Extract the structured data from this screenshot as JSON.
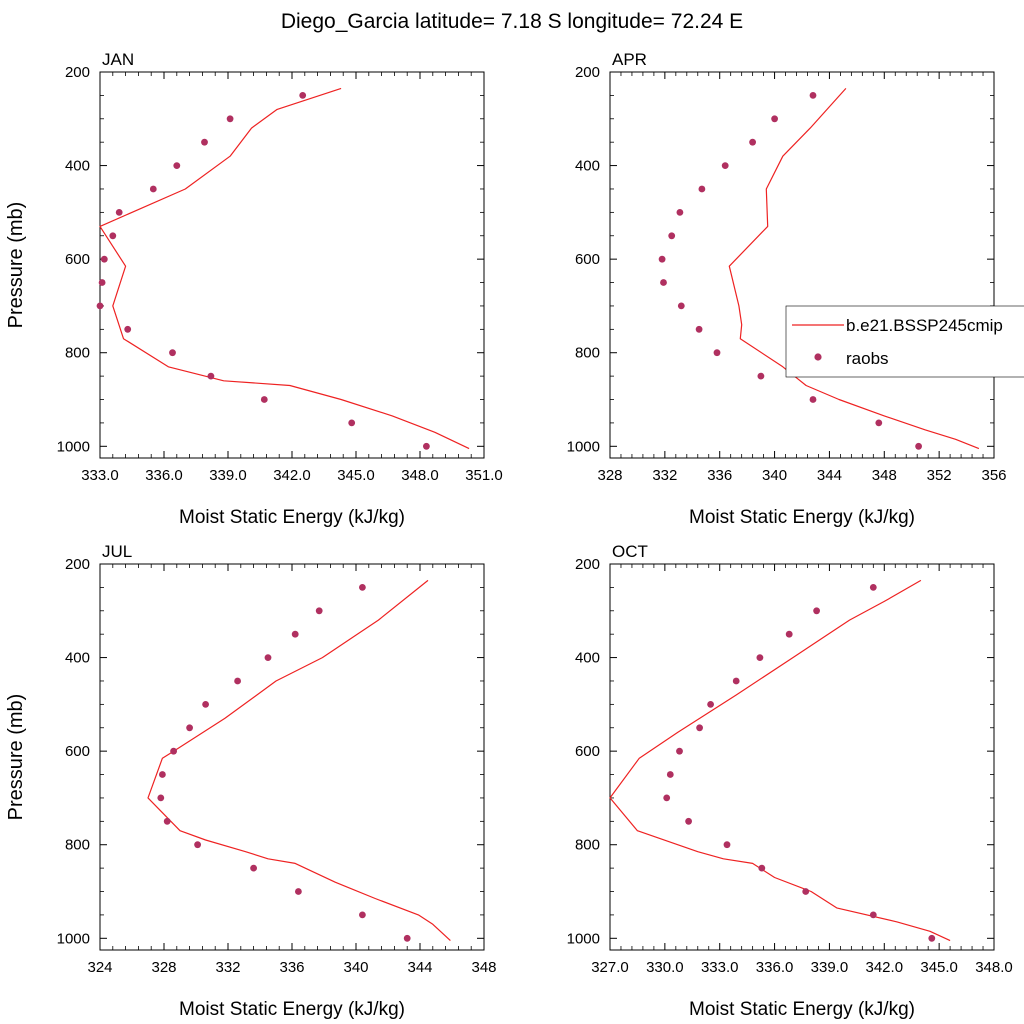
{
  "title": "Diego_Garcia  latitude= 7.18 S longitude= 72.24 E",
  "legend": {
    "model_label": "b.e21.BSSP245cmip",
    "obs_label": "raobs"
  },
  "colors": {
    "model_line": "#ee2222",
    "obs_marker": "#b03060"
  },
  "chart_data": [
    {
      "type": "line",
      "panel_label": "JAN",
      "xlabel": "Moist Static Energy (kJ/kg)",
      "ylabel": "Pressure (mb)",
      "xlim": [
        333,
        351
      ],
      "ylim": [
        1025,
        200
      ],
      "x_ticks": [
        333,
        336,
        339,
        342,
        345,
        348,
        351
      ],
      "x_tick_labels": [
        "333.0",
        "336.0",
        "339.0",
        "342.0",
        "345.0",
        "348.0",
        "351.0"
      ],
      "y_ticks": [
        200,
        400,
        600,
        800,
        1000
      ],
      "y_tick_labels": [
        "200",
        "400",
        "600",
        "800",
        "1000"
      ],
      "series": [
        {
          "name": "b.e21.BSSP245cmip",
          "kind": "line",
          "x": [
            350.3,
            348.7,
            346.7,
            344.3,
            341.9,
            338.8,
            336.2,
            334.1,
            333.6,
            334.2,
            333.0,
            337.0,
            339.1,
            340.1,
            341.3,
            344.3
          ],
          "y": [
            1005,
            970,
            935,
            900,
            870,
            860,
            830,
            770,
            700,
            615,
            530,
            450,
            380,
            320,
            280,
            235
          ]
        },
        {
          "name": "raobs",
          "kind": "scatter",
          "x": [
            348.3,
            344.8,
            340.7,
            338.2,
            336.4,
            334.3,
            333.0,
            333.1,
            333.2,
            333.6,
            333.9,
            335.5,
            336.6,
            337.9,
            339.1,
            342.5
          ],
          "y": [
            1000,
            950,
            900,
            850,
            800,
            750,
            700,
            650,
            600,
            550,
            500,
            450,
            400,
            350,
            300,
            250
          ]
        }
      ]
    },
    {
      "type": "line",
      "panel_label": "APR",
      "xlabel": "Moist Static Energy (kJ/kg)",
      "ylabel": "",
      "xlim": [
        328,
        356
      ],
      "ylim": [
        1025,
        200
      ],
      "x_ticks": [
        328,
        332,
        336,
        340,
        344,
        348,
        352,
        356
      ],
      "x_tick_labels": [
        "328",
        "332",
        "336",
        "340",
        "344",
        "348",
        "352",
        "356"
      ],
      "y_ticks": [
        200,
        400,
        600,
        800,
        1000
      ],
      "y_tick_labels": [
        "200",
        "400",
        "600",
        "800",
        "1000"
      ],
      "series": [
        {
          "name": "b.e21.BSSP245cmip",
          "kind": "line",
          "x": [
            354.9,
            353.2,
            351.0,
            348.0,
            344.7,
            342.3,
            340.6,
            337.5,
            337.6,
            337.4,
            336.7,
            339.5,
            339.4,
            340.6,
            342.6,
            345.2
          ],
          "y": [
            1005,
            985,
            965,
            935,
            900,
            870,
            830,
            770,
            740,
            700,
            615,
            530,
            450,
            380,
            320,
            235
          ]
        },
        {
          "name": "raobs",
          "kind": "scatter",
          "x": [
            350.5,
            347.6,
            342.8,
            339.0,
            335.8,
            334.5,
            333.2,
            331.9,
            331.8,
            332.5,
            333.1,
            334.7,
            336.4,
            338.4,
            340.0,
            342.8
          ],
          "y": [
            1000,
            950,
            900,
            850,
            800,
            750,
            700,
            650,
            600,
            550,
            500,
            450,
            400,
            350,
            300,
            250
          ]
        }
      ]
    },
    {
      "type": "line",
      "panel_label": "JUL",
      "xlabel": "Moist Static Energy (kJ/kg)",
      "ylabel": "Pressure (mb)",
      "xlim": [
        324,
        348
      ],
      "ylim": [
        1025,
        200
      ],
      "x_ticks": [
        324,
        328,
        332,
        336,
        340,
        344,
        348
      ],
      "x_tick_labels": [
        "324",
        "328",
        "332",
        "336",
        "340",
        "344",
        "348"
      ],
      "y_ticks": [
        200,
        400,
        600,
        800,
        1000
      ],
      "y_tick_labels": [
        "200",
        "400",
        "600",
        "800",
        "1000"
      ],
      "series": [
        {
          "name": "b.e21.BSSP245cmip",
          "kind": "line",
          "x": [
            345.9,
            344.8,
            343.9,
            341.2,
            338.7,
            336.2,
            334.5,
            333.1,
            330.6,
            329.0,
            327.0,
            327.9,
            328.6,
            331.8,
            335.0,
            337.9,
            341.4,
            344.5
          ],
          "y": [
            1005,
            970,
            950,
            915,
            880,
            840,
            830,
            815,
            790,
            770,
            700,
            615,
            600,
            530,
            450,
            400,
            320,
            235
          ]
        },
        {
          "name": "raobs",
          "kind": "scatter",
          "x": [
            343.2,
            340.4,
            336.4,
            333.6,
            330.1,
            328.2,
            327.8,
            327.9,
            328.6,
            329.6,
            330.6,
            332.6,
            334.5,
            336.2,
            337.7,
            340.4
          ],
          "y": [
            1000,
            950,
            900,
            850,
            800,
            750,
            700,
            650,
            600,
            550,
            500,
            450,
            400,
            350,
            300,
            250
          ]
        }
      ]
    },
    {
      "type": "line",
      "panel_label": "OCT",
      "xlabel": "Moist Static Energy (kJ/kg)",
      "ylabel": "",
      "xlim": [
        327,
        348
      ],
      "ylim": [
        1025,
        200
      ],
      "x_ticks": [
        327,
        330,
        333,
        336,
        339,
        342,
        345,
        348
      ],
      "x_tick_labels": [
        "327.0",
        "330.0",
        "333.0",
        "336.0",
        "339.0",
        "342.0",
        "345.0",
        "348.0"
      ],
      "y_ticks": [
        200,
        400,
        600,
        800,
        1000
      ],
      "y_tick_labels": [
        "200",
        "400",
        "600",
        "800",
        "1000"
      ],
      "series": [
        {
          "name": "b.e21.BSSP245cmip",
          "kind": "line",
          "x": [
            345.6,
            344.5,
            342.7,
            339.4,
            338.0,
            336.0,
            334.8,
            333.2,
            331.8,
            328.5,
            327.0,
            328.6,
            330.7,
            333.9,
            337.0,
            340.1,
            342.0,
            344.0
          ],
          "y": [
            1005,
            985,
            965,
            935,
            900,
            870,
            840,
            830,
            815,
            770,
            700,
            615,
            560,
            480,
            400,
            320,
            280,
            235
          ]
        },
        {
          "name": "raobs",
          "kind": "scatter",
          "x": [
            344.6,
            341.4,
            337.7,
            335.3,
            333.4,
            331.3,
            330.1,
            330.3,
            330.8,
            331.9,
            332.5,
            333.9,
            335.2,
            336.8,
            338.3,
            341.4
          ],
          "y": [
            1000,
            950,
            900,
            850,
            800,
            750,
            700,
            650,
            600,
            550,
            500,
            450,
            400,
            350,
            300,
            250
          ]
        }
      ]
    }
  ]
}
